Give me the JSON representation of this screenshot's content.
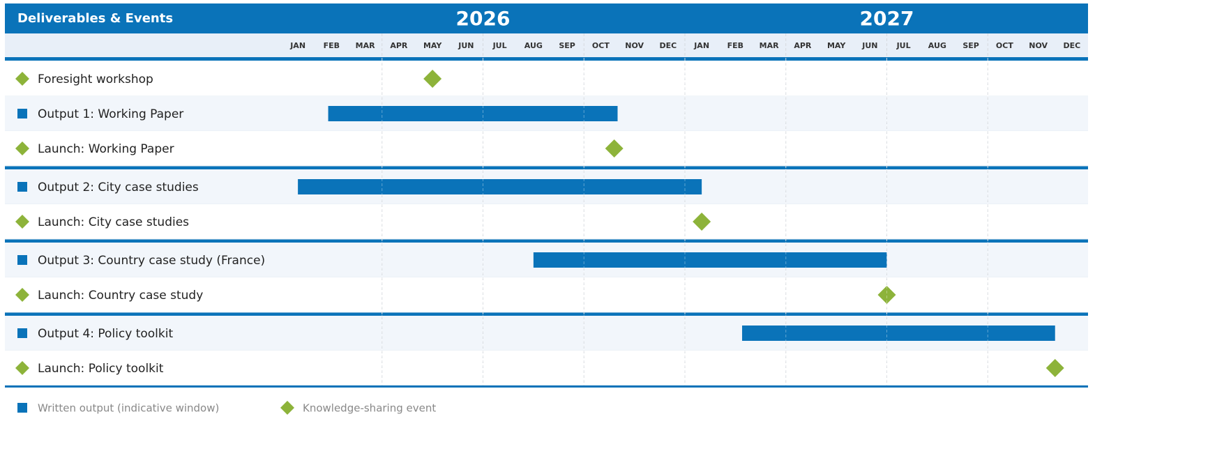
{
  "chart_data": {
    "type": "gantt",
    "title": "Deliverables & Events",
    "years": [
      "2026",
      "2027"
    ],
    "categories": [
      "JAN",
      "FEB",
      "MAR",
      "APR",
      "MAY",
      "JUN",
      "JUL",
      "AUG",
      "SEP",
      "OCT",
      "NOV",
      "DEC",
      "JAN",
      "FEB",
      "MAR",
      "APR",
      "MAY",
      "JUN",
      "JUL",
      "AUG",
      "SEP",
      "OCT",
      "NOV",
      "DEC"
    ],
    "xlim": [
      0,
      24
    ],
    "xticks": [
      3,
      6,
      9,
      12,
      15,
      18,
      21
    ],
    "grid": true,
    "bar_color": "#0a73b9",
    "milestone_color": "#8db33a",
    "groups": [
      [
        {
          "name": "Foresight workshop",
          "kind": "milestone",
          "value": 4.5
        },
        {
          "name": "Output 1: Working Paper",
          "kind": "bar",
          "start": 1.4,
          "end": 10
        },
        {
          "name": "Launch: Working Paper",
          "kind": "milestone",
          "value": 9.9
        }
      ],
      [
        {
          "name": "Output 2: City case studies",
          "kind": "bar",
          "start": 0.5,
          "end": 12.5
        },
        {
          "name": "Launch: City case studies",
          "kind": "milestone",
          "value": 12.5
        }
      ],
      [
        {
          "name": "Output 3: Country case study (France)",
          "kind": "bar",
          "start": 7.5,
          "end": 18
        },
        {
          "name": "Launch: Country case study",
          "kind": "milestone",
          "value": 18
        }
      ],
      [
        {
          "name": "Output 4: Policy toolkit",
          "kind": "bar",
          "start": 13.7,
          "end": 23
        },
        {
          "name": "Launch: Policy toolkit",
          "kind": "milestone",
          "value": 23
        }
      ]
    ],
    "legend": [
      {
        "name": "Written output (indicative window)",
        "kind": "bar"
      },
      {
        "name": "Knowledge-sharing event",
        "kind": "milestone"
      }
    ]
  }
}
